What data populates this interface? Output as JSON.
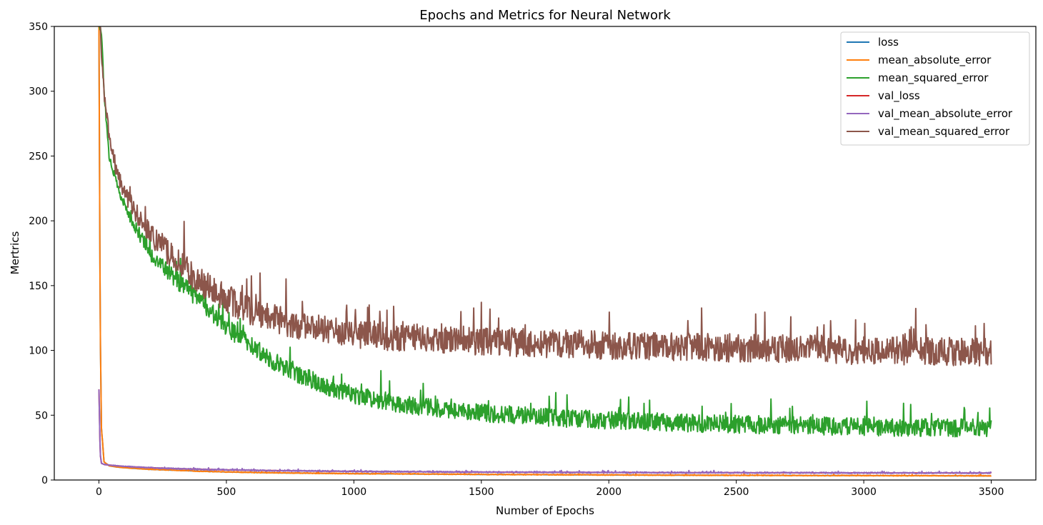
{
  "chart_data": {
    "type": "line",
    "title": "Epochs and Metrics for Neural Network",
    "xlabel": "Number of Epochs",
    "ylabel": "Mertrics",
    "xlim": [
      -175,
      3675
    ],
    "ylim": [
      0,
      350
    ],
    "xticks": [
      0,
      500,
      1000,
      1500,
      2000,
      2500,
      3000,
      3500
    ],
    "yticks": [
      0,
      50,
      100,
      150,
      200,
      250,
      300,
      350
    ],
    "grid": false,
    "legend_position": "top-right",
    "series": [
      {
        "name": "loss",
        "color": "#1f77b4",
        "x": [
          0,
          5,
          10,
          20,
          40,
          70,
          100,
          150,
          200,
          300,
          400,
          500,
          700,
          1000,
          1500,
          2000,
          2500,
          3000,
          3500
        ],
        "y": [
          350,
          120,
          40,
          14,
          11,
          10,
          9.5,
          8.8,
          8.2,
          7.5,
          6.8,
          6.2,
          5.5,
          4.9,
          4.3,
          3.9,
          3.6,
          3.4,
          3.2
        ],
        "noise": 0
      },
      {
        "name": "mean_absolute_error",
        "color": "#ff7f0e",
        "x": [
          0,
          5,
          10,
          20,
          40,
          70,
          100,
          150,
          200,
          300,
          400,
          500,
          700,
          1000,
          1500,
          2000,
          2500,
          3000,
          3500
        ],
        "y": [
          350,
          120,
          40,
          14,
          11,
          10,
          9.5,
          8.8,
          8.2,
          7.5,
          6.8,
          6.2,
          5.5,
          4.9,
          4.3,
          3.9,
          3.6,
          3.4,
          3.2
        ],
        "noise": 0.3
      },
      {
        "name": "mean_squared_error",
        "color": "#2ca02c",
        "x": [
          0,
          5,
          10,
          20,
          40,
          70,
          100,
          150,
          200,
          300,
          400,
          500,
          600,
          700,
          800,
          900,
          1000,
          1200,
          1500,
          1800,
          2000,
          2500,
          3000,
          3500
        ],
        "y": [
          350,
          350,
          345,
          300,
          250,
          228,
          212,
          192,
          175,
          155,
          138,
          118,
          103,
          90,
          80,
          72,
          66,
          58,
          52,
          48,
          46,
          43,
          41,
          40
        ],
        "noise": 7
      },
      {
        "name": "val_loss",
        "color": "#d62728",
        "x": [
          0,
          5,
          10,
          20,
          40,
          70,
          100,
          200,
          300,
          500,
          700,
          1000,
          1500,
          2000,
          2500,
          3000,
          3500
        ],
        "y": [
          70,
          20,
          13,
          12,
          11.5,
          11,
          10.5,
          9.5,
          8.8,
          7.8,
          7.2,
          6.6,
          6.1,
          5.8,
          5.6,
          5.5,
          5.4
        ],
        "noise": 0
      },
      {
        "name": "val_mean_absolute_error",
        "color": "#9467bd",
        "x": [
          0,
          5,
          10,
          20,
          40,
          70,
          100,
          200,
          300,
          500,
          700,
          1000,
          1500,
          2000,
          2500,
          3000,
          3500
        ],
        "y": [
          70,
          20,
          13,
          12,
          11.5,
          11,
          10.5,
          9.5,
          8.8,
          7.8,
          7.2,
          6.6,
          6.1,
          5.8,
          5.6,
          5.5,
          5.4
        ],
        "noise": 0.5
      },
      {
        "name": "val_mean_squared_error",
        "color": "#8c564b",
        "x": [
          0,
          5,
          10,
          20,
          40,
          70,
          100,
          150,
          200,
          300,
          400,
          500,
          600,
          700,
          800,
          1000,
          1200,
          1500,
          2000,
          2500,
          3000,
          3500
        ],
        "y": [
          350,
          350,
          330,
          300,
          265,
          238,
          222,
          205,
          190,
          170,
          152,
          140,
          130,
          124,
          118,
          113,
          110,
          107,
          104,
          102,
          100,
          99
        ],
        "noise": 11
      }
    ]
  }
}
